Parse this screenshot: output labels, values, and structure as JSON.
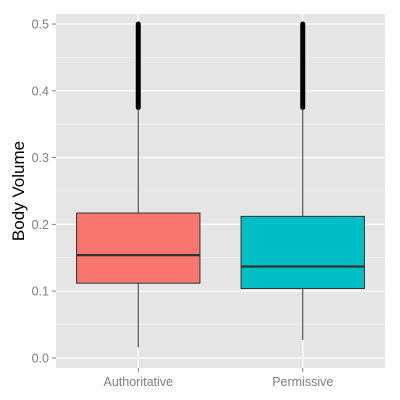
{
  "chart_data": {
    "type": "box",
    "title": "",
    "xlabel": "",
    "ylabel": "Body Volume",
    "categories": [
      "Authoritative",
      "Permissive"
    ],
    "ylim": [
      -0.015,
      0.515
    ],
    "yticks": [
      "0.0",
      "0.1",
      "0.2",
      "0.3",
      "0.4",
      "0.5"
    ],
    "grid": true,
    "legend": "none",
    "boxes": [
      {
        "category": "Authoritative",
        "whisker_low": 0.016,
        "q1": 0.112,
        "median": 0.154,
        "q3": 0.217,
        "whisker_high": 0.375,
        "outliers_from": 0.375,
        "outliers_to": 0.5,
        "fill": "#F8766D"
      },
      {
        "category": "Permissive",
        "whisker_low": 0.027,
        "q1": 0.104,
        "median": 0.137,
        "q3": 0.212,
        "whisker_high": 0.375,
        "outliers_from": 0.375,
        "outliers_to": 0.5,
        "fill": "#00BFC4"
      }
    ],
    "colors": {
      "panel_background": "#E5E5E5",
      "grid_major": "#FFFFFF",
      "grid_minor": "#F2F2F2",
      "box_outline": "#333333",
      "tick_text": "#7F7F7F"
    }
  }
}
